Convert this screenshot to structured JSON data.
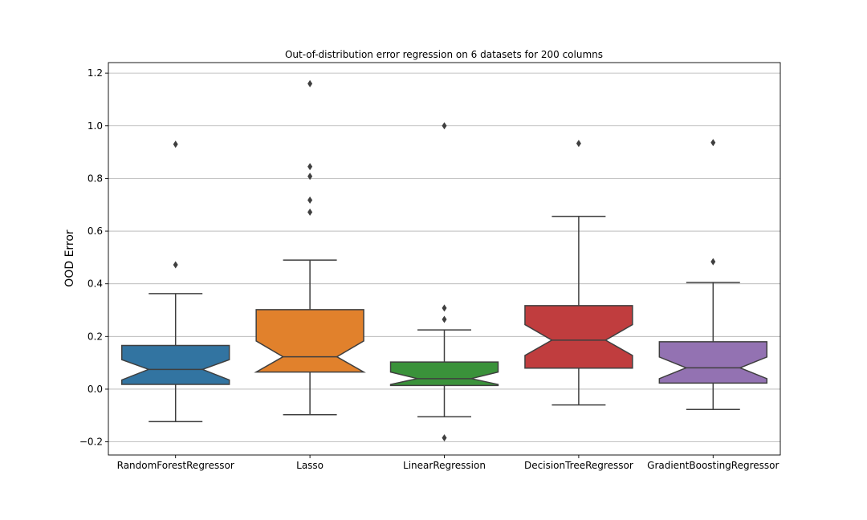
{
  "chart_data": {
    "type": "box",
    "title": "Out-of-distribution error regression on 6 datasets for 200 columns",
    "xlabel": "",
    "ylabel": "OOD Error",
    "ylim": [
      -0.25,
      1.24
    ],
    "yticks": [
      -0.2,
      0.0,
      0.2,
      0.4,
      0.6,
      0.8,
      1.0,
      1.2
    ],
    "ytick_labels": [
      "−0.2",
      "0.0",
      "0.2",
      "0.4",
      "0.6",
      "0.8",
      "1.0",
      "1.2"
    ],
    "grid": "horizontal",
    "notched": true,
    "categories": [
      "RandomForestRegressor",
      "Lasso",
      "LinearRegression",
      "DecisionTreeRegressor",
      "GradientBoostingRegressor"
    ],
    "series": [
      {
        "category": "RandomForestRegressor",
        "color": "#3274a1",
        "whisker_low": -0.123,
        "q1": 0.018,
        "median": 0.075,
        "q3": 0.166,
        "whisker_high": 0.363,
        "notch_low": 0.035,
        "notch_high": 0.112,
        "fliers": [
          0.472,
          0.93
        ]
      },
      {
        "category": "Lasso",
        "color": "#e1812c",
        "whisker_low": -0.097,
        "q1": 0.065,
        "median": 0.123,
        "q3": 0.302,
        "whisker_high": 0.49,
        "notch_low": 0.065,
        "notch_high": 0.183,
        "fliers": [
          0.672,
          0.718,
          0.808,
          0.845,
          1.16
        ]
      },
      {
        "category": "LinearRegression",
        "color": "#3a923a",
        "whisker_low": -0.105,
        "q1": 0.014,
        "median": 0.04,
        "q3": 0.103,
        "whisker_high": 0.225,
        "notch_low": 0.018,
        "notch_high": 0.065,
        "fliers": [
          0.265,
          0.308,
          1.0,
          -0.185
        ]
      },
      {
        "category": "DecisionTreeRegressor",
        "color": "#c03d3e",
        "whisker_low": -0.06,
        "q1": 0.08,
        "median": 0.186,
        "q3": 0.317,
        "whisker_high": 0.656,
        "notch_low": 0.128,
        "notch_high": 0.245,
        "fliers": [
          0.933
        ]
      },
      {
        "category": "GradientBoostingRegressor",
        "color": "#9372b2",
        "whisker_low": -0.077,
        "q1": 0.023,
        "median": 0.081,
        "q3": 0.18,
        "whisker_high": 0.405,
        "notch_low": 0.04,
        "notch_high": 0.122,
        "fliers": [
          0.484,
          0.936
        ]
      }
    ]
  }
}
